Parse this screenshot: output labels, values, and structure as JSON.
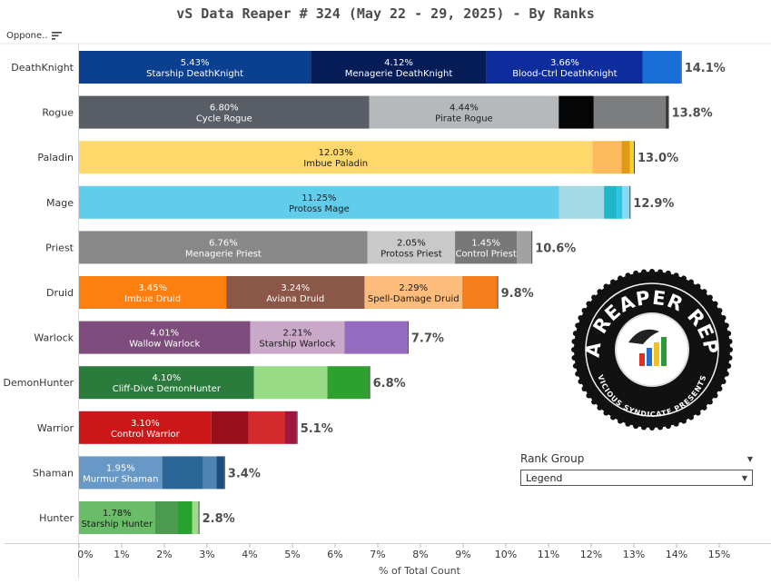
{
  "title": "vS Data Reaper #  324 (May 22 - 29, 2025) - By Ranks",
  "column_header": "Oppone..",
  "x_axis_label": "% of Total Count",
  "legend": {
    "title": "Rank Group",
    "value": "Legend"
  },
  "logo": {
    "text_top": "DATA REAPER REPORT",
    "text_bottom": "VICIOUS SYNDICATE PRESENTS"
  },
  "chart_data": {
    "type": "bar",
    "orientation": "horizontal",
    "stacked": true,
    "xlabel": "% of Total Count",
    "xlim": [
      0,
      15.5
    ],
    "x_ticks": [
      "0%",
      "1%",
      "2%",
      "3%",
      "4%",
      "5%",
      "6%",
      "7%",
      "8%",
      "9%",
      "10%",
      "11%",
      "12%",
      "13%",
      "14%",
      "15%"
    ],
    "grid": false,
    "categories": [
      "DeathKnight",
      "Rogue",
      "Paladin",
      "Mage",
      "Priest",
      "Druid",
      "Warlock",
      "DemonHunter",
      "Warrior",
      "Shaman",
      "Hunter"
    ],
    "totals": [
      "14.1%",
      "13.8%",
      "13.0%",
      "12.9%",
      "10.6%",
      "9.8%",
      "7.7%",
      "6.8%",
      "5.1%",
      "3.4%",
      "2.8%"
    ],
    "bars": [
      {
        "class": "DeathKnight",
        "total": 14.1,
        "segments": [
          {
            "value": 5.43,
            "pct": "5.43%",
            "name": "Starship DeathKnight",
            "color": "#0b3f8f"
          },
          {
            "value": 4.12,
            "pct": "4.12%",
            "name": "Menagerie DeathKnight",
            "color": "#051c56"
          },
          {
            "value": 3.66,
            "pct": "3.66%",
            "name": "Blood-Ctrl DeathKnight",
            "color": "#0d2d9c"
          },
          {
            "value": 0.89,
            "color": "#1a6fd6"
          }
        ]
      },
      {
        "class": "Rogue",
        "total": 13.8,
        "segments": [
          {
            "value": 6.8,
            "pct": "6.80%",
            "name": "Cycle Rogue",
            "color": "#595d66"
          },
          {
            "value": 4.44,
            "pct": "4.44%",
            "name": "Pirate Rogue",
            "color": "#b6b9bb"
          },
          {
            "value": 0.82,
            "color": "#050505"
          },
          {
            "value": 1.69,
            "color": "#7b7d7f"
          },
          {
            "value": 0.05,
            "color": "#2b2b2b"
          }
        ]
      },
      {
        "class": "Paladin",
        "total": 13.0,
        "segments": [
          {
            "value": 12.03,
            "pct": "12.03%",
            "name": "Imbue Paladin",
            "color": "#fed86a"
          },
          {
            "value": 0.68,
            "color": "#fdbb5c"
          },
          {
            "value": 0.2,
            "color": "#e39a12"
          },
          {
            "value": 0.09,
            "color": "#f2d230"
          }
        ]
      },
      {
        "class": "Mage",
        "total": 12.9,
        "segments": [
          {
            "value": 11.25,
            "pct": "11.25%",
            "name": "Protoss Mage",
            "color": "#62cdeb"
          },
          {
            "value": 1.05,
            "color": "#a4dbe7"
          },
          {
            "value": 0.3,
            "color": "#1eb6c9"
          },
          {
            "value": 0.13,
            "color": "#34c1dd"
          },
          {
            "value": 0.17,
            "color": "#8ad8ef"
          }
        ]
      },
      {
        "class": "Priest",
        "total": 10.6,
        "segments": [
          {
            "value": 6.76,
            "pct": "6.76%",
            "name": "Menagerie Priest",
            "color": "#888888"
          },
          {
            "value": 2.05,
            "pct": "2.05%",
            "name": "Protoss Priest",
            "color": "#c9c9c9"
          },
          {
            "value": 1.45,
            "pct": "1.45%",
            "name": "Control Priest",
            "color": "#787878"
          },
          {
            "value": 0.34,
            "color": "#a2a2a2"
          }
        ]
      },
      {
        "class": "Druid",
        "total": 9.8,
        "segments": [
          {
            "value": 3.45,
            "pct": "3.45%",
            "name": "Imbue Druid",
            "color": "#fc7f0f"
          },
          {
            "value": 3.24,
            "pct": "3.24%",
            "name": "Aviana Druid",
            "color": "#8b5748"
          },
          {
            "value": 2.29,
            "pct": "2.29%",
            "name": "Spell-Damage Druid",
            "color": "#fdbb7c"
          },
          {
            "value": 0.82,
            "color": "#f47f1a"
          }
        ]
      },
      {
        "class": "Warlock",
        "total": 7.7,
        "segments": [
          {
            "value": 4.01,
            "pct": "4.01%",
            "name": "Wallow Warlock",
            "color": "#7e4d7d"
          },
          {
            "value": 2.21,
            "pct": "2.21%",
            "name": "Starship Warlock",
            "color": "#c9a8c9"
          },
          {
            "value": 1.48,
            "color": "#946bbf"
          }
        ]
      },
      {
        "class": "DemonHunter",
        "total": 6.8,
        "segments": [
          {
            "value": 4.1,
            "pct": "4.10%",
            "name": "Cliff-Dive DemonHunter",
            "color": "#2a7b3c"
          },
          {
            "value": 1.72,
            "color": "#98dc88"
          },
          {
            "value": 0.98,
            "color": "#2ea02e"
          }
        ]
      },
      {
        "class": "Warrior",
        "total": 5.1,
        "segments": [
          {
            "value": 3.1,
            "pct": "3.10%",
            "name": "Control Warrior",
            "color": "#cc1719"
          },
          {
            "value": 0.87,
            "color": "#9a0f1d"
          },
          {
            "value": 0.86,
            "color": "#d42a2b"
          },
          {
            "value": 0.27,
            "color": "#a0163e"
          }
        ]
      },
      {
        "class": "Shaman",
        "total": 3.4,
        "segments": [
          {
            "value": 1.95,
            "pct": "1.95%",
            "name": "Murmur Shaman",
            "color": "#6898c6"
          },
          {
            "value": 0.96,
            "color": "#2c6696"
          },
          {
            "value": 0.31,
            "color": "#4f84b2"
          },
          {
            "value": 0.18,
            "color": "#1c4d7d"
          }
        ]
      },
      {
        "class": "Hunter",
        "total": 2.8,
        "segments": [
          {
            "value": 1.78,
            "pct": "1.78%",
            "name": "Starship Hunter",
            "color": "#6abc68"
          },
          {
            "value": 0.53,
            "color": "#4c9a4e"
          },
          {
            "value": 0.34,
            "color": "#27a22e"
          },
          {
            "value": 0.15,
            "color": "#a0d98b"
          }
        ]
      }
    ]
  }
}
